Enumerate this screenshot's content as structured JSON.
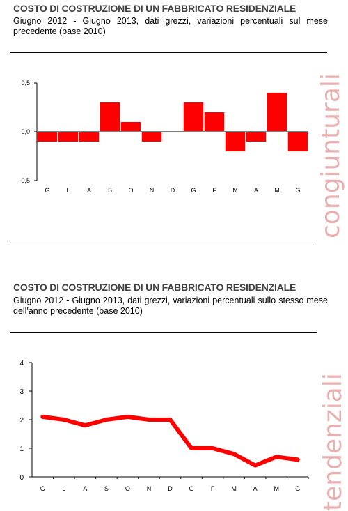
{
  "chart_data": [
    {
      "type": "bar",
      "title": "COSTO DI COSTRUZIONE DI UN FABBRICATO RESIDENZIALE",
      "subtitle": "Giugno 2012 - Giugno 2013, dati grezzi, variazioni percentuali sul mese precedente (base 2010)",
      "side_label": "congiunturali",
      "categories": [
        "G",
        "L",
        "A",
        "S",
        "O",
        "N",
        "D",
        "G",
        "F",
        "M",
        "A",
        "M",
        "G"
      ],
      "values": [
        -0.1,
        -0.1,
        -0.1,
        0.3,
        0.1,
        -0.1,
        0.0,
        0.3,
        0.2,
        -0.2,
        -0.1,
        0.4,
        -0.2
      ],
      "yticks": [
        "0,5",
        "0,0",
        "-0,5"
      ],
      "ylim": [
        -0.5,
        0.5
      ],
      "color": "#ff0000",
      "grid": false
    },
    {
      "type": "line",
      "title": "COSTO DI COSTRUZIONE DI UN FABBRICATO RESIDENZIALE",
      "subtitle": "Giugno 2012 - Giugno 2013, dati grezzi, variazioni percentuali sullo stesso mese dell'anno precedente (base 2010)",
      "side_label": "tendenziali",
      "categories": [
        "G",
        "L",
        "A",
        "S",
        "O",
        "N",
        "D",
        "G",
        "F",
        "M",
        "A",
        "M",
        "G"
      ],
      "values": [
        2.1,
        2.0,
        1.8,
        2.0,
        2.1,
        2.0,
        2.0,
        1.0,
        1.0,
        0.8,
        0.4,
        0.7,
        0.6
      ],
      "yticks": [
        "4",
        "3",
        "2",
        "1",
        "0"
      ],
      "ylim": [
        0,
        4
      ],
      "color": "#ff0000",
      "grid": false
    }
  ]
}
